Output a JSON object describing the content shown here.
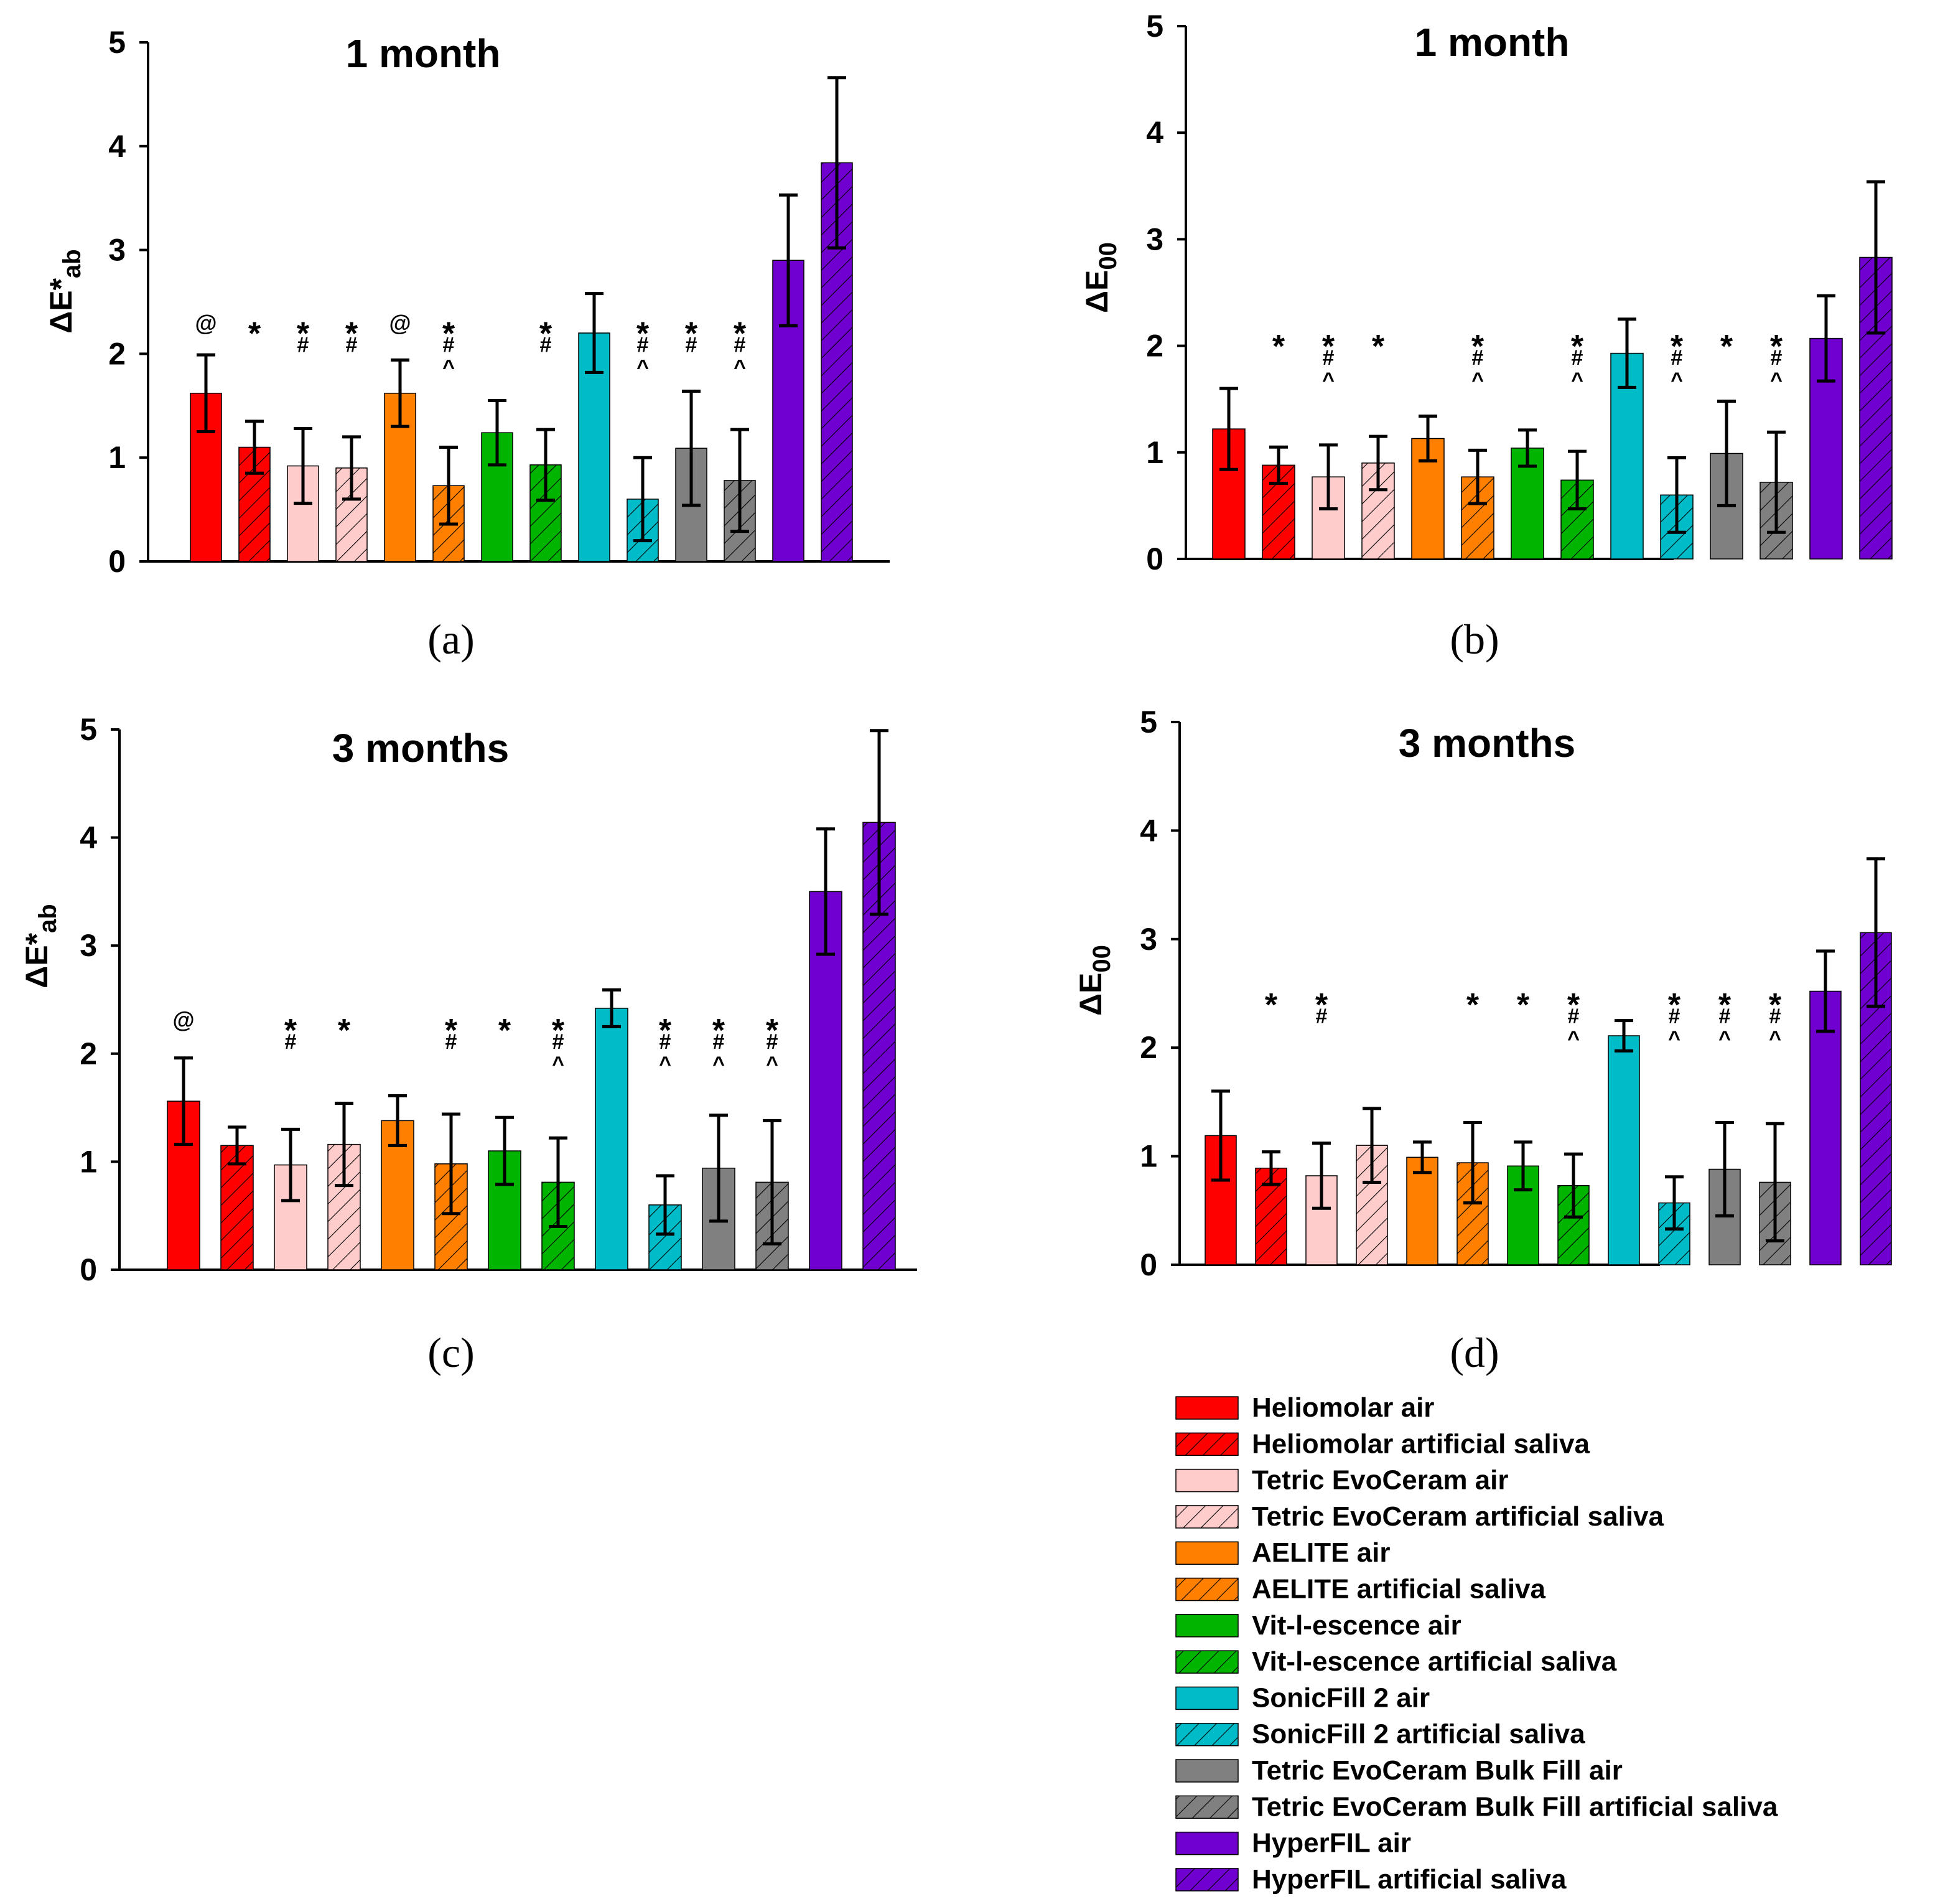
{
  "legend": [
    {
      "name": "Heliomolar air",
      "color": "#ff0000",
      "hatched": false
    },
    {
      "name": "Heliomolar artificial saliva",
      "color": "#ff0000",
      "hatched": true
    },
    {
      "name": "Tetric EvoCeram air",
      "color": "#ffcccc",
      "hatched": false
    },
    {
      "name": "Tetric EvoCeram artificial saliva",
      "color": "#ffcccc",
      "hatched": true
    },
    {
      "name": "AELITE air",
      "color": "#ff8000",
      "hatched": false
    },
    {
      "name": "AELITE artificial saliva",
      "color": "#ff8000",
      "hatched": true
    },
    {
      "name": "Vit-l-escence air",
      "color": "#00b400",
      "hatched": false
    },
    {
      "name": "Vit-l-escence artificial saliva",
      "color": "#00b400",
      "hatched": true
    },
    {
      "name": "SonicFill 2 air",
      "color": "#00bcc8",
      "hatched": false
    },
    {
      "name": "SonicFill 2 artificial saliva",
      "color": "#00bcc8",
      "hatched": true
    },
    {
      "name": "Tetric EvoCeram Bulk Fill air",
      "color": "#808080",
      "hatched": false
    },
    {
      "name": "Tetric EvoCeram Bulk Fill artificial saliva",
      "color": "#808080",
      "hatched": true
    },
    {
      "name": "HyperFIL air",
      "color": "#7000d0",
      "hatched": false
    },
    {
      "name": "HyperFIL artificial saliva",
      "color": "#7000d0",
      "hatched": true
    }
  ],
  "chart_data": [
    {
      "type": "bar",
      "panel": "(a)",
      "title": "1 month",
      "ylabel_main": "ΔE*",
      "ylabel_sub": "ab",
      "ylim": [
        0,
        5
      ],
      "yticks": [
        "0",
        "1",
        "2",
        "3",
        "4",
        "5"
      ],
      "values": [
        1.62,
        1.1,
        0.92,
        0.9,
        1.62,
        0.73,
        1.24,
        0.93,
        2.2,
        0.6,
        1.09,
        0.78,
        2.9,
        3.84
      ],
      "errors": [
        0.37,
        0.25,
        0.36,
        0.3,
        0.32,
        0.37,
        0.31,
        0.34,
        0.38,
        0.4,
        0.55,
        0.49,
        0.63,
        0.82
      ],
      "annotations": [
        [
          "@"
        ],
        [
          "*"
        ],
        [
          "*",
          "#"
        ],
        [
          "*",
          "#"
        ],
        [
          "@"
        ],
        [
          "*",
          "#",
          "^"
        ],
        [],
        [
          "*",
          "#"
        ],
        [],
        [
          "*",
          "#",
          "^"
        ],
        [
          "*",
          "#"
        ],
        [
          "*",
          "#",
          "^"
        ],
        [],
        []
      ]
    },
    {
      "type": "bar",
      "panel": "(b)",
      "title": "1 month",
      "ylabel_main": "ΔE",
      "ylabel_sub": "00",
      "ylim": [
        0,
        5
      ],
      "yticks": [
        "0",
        "1",
        "2",
        "3",
        "4",
        "5"
      ],
      "values": [
        1.22,
        0.88,
        0.77,
        0.9,
        1.13,
        0.77,
        1.04,
        0.74,
        1.93,
        0.6,
        0.99,
        0.72,
        2.07,
        2.83
      ],
      "errors": [
        0.38,
        0.17,
        0.3,
        0.25,
        0.21,
        0.25,
        0.17,
        0.27,
        0.32,
        0.35,
        0.49,
        0.47,
        0.4,
        0.71
      ],
      "annotations": [
        [],
        [
          "*"
        ],
        [
          "*",
          "#",
          "^"
        ],
        [
          "*"
        ],
        [],
        [
          "*",
          "#",
          "^"
        ],
        [],
        [
          "*",
          "#",
          "^"
        ],
        [],
        [
          "*",
          "#",
          "^"
        ],
        [
          "*"
        ],
        [
          "*",
          "#",
          "^"
        ],
        [],
        []
      ]
    },
    {
      "type": "bar",
      "panel": "(c)",
      "title": "3 months",
      "ylabel_main": "ΔE*",
      "ylabel_sub": "ab",
      "ylim": [
        0,
        5
      ],
      "yticks": [
        "0",
        "1",
        "2",
        "3",
        "4",
        "5"
      ],
      "values": [
        1.56,
        1.15,
        0.97,
        1.16,
        1.38,
        0.98,
        1.1,
        0.81,
        2.42,
        0.6,
        0.94,
        0.81,
        3.5,
        4.14
      ],
      "errors": [
        0.4,
        0.17,
        0.33,
        0.38,
        0.23,
        0.46,
        0.31,
        0.41,
        0.17,
        0.27,
        0.49,
        0.57,
        0.58,
        0.85
      ],
      "annotations": [
        [
          "@"
        ],
        [],
        [
          "*",
          "#"
        ],
        [
          "*"
        ],
        [],
        [
          "*",
          "#"
        ],
        [
          "*"
        ],
        [
          "*",
          "#",
          "^"
        ],
        [],
        [
          "*",
          "#",
          "^"
        ],
        [
          "*",
          "#",
          "^"
        ],
        [
          "*",
          "#",
          "^"
        ],
        [],
        []
      ]
    },
    {
      "type": "bar",
      "panel": "(d)",
      "title": "3 months",
      "ylabel_main": "ΔE",
      "ylabel_sub": "00",
      "ylim": [
        0,
        5
      ],
      "yticks": [
        "0",
        "1",
        "2",
        "3",
        "4",
        "5"
      ],
      "values": [
        1.19,
        0.89,
        0.82,
        1.1,
        0.99,
        0.94,
        0.91,
        0.73,
        2.11,
        0.57,
        0.88,
        0.76,
        2.52,
        3.06
      ],
      "errors": [
        0.41,
        0.15,
        0.3,
        0.34,
        0.14,
        0.37,
        0.22,
        0.29,
        0.14,
        0.24,
        0.43,
        0.54,
        0.37,
        0.68
      ],
      "annotations": [
        [],
        [
          "*"
        ],
        [
          "*",
          "#"
        ],
        [],
        [],
        [
          "*"
        ],
        [
          "*"
        ],
        [
          "*",
          "#",
          "^"
        ],
        [],
        [
          "*",
          "#",
          "^"
        ],
        [
          "*",
          "#",
          "^"
        ],
        [
          "*",
          "#",
          "^"
        ],
        [],
        []
      ]
    }
  ]
}
